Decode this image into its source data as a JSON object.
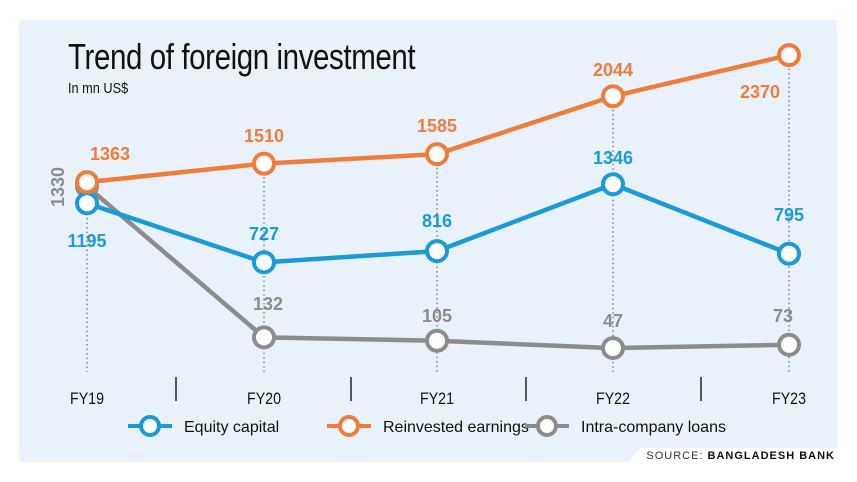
{
  "chart_data": {
    "type": "line",
    "title": "Trend of foreign investment",
    "subtitle": "In mn US$",
    "categories": [
      "FY19",
      "FY20",
      "FY21",
      "FY22",
      "FY23"
    ],
    "series": [
      {
        "name": "Equity capital",
        "color": "#1a9ad6",
        "values": [
          1195,
          727,
          816,
          1346,
          795
        ]
      },
      {
        "name": "Reinvested earnings",
        "color": "#ee7d3b",
        "values": [
          1363,
          1510,
          1585,
          2044,
          2370
        ]
      },
      {
        "name": "Intra-company loans",
        "color": "#8c8c8c",
        "values": [
          1330,
          132,
          105,
          47,
          73
        ]
      }
    ],
    "ylim": [
      0,
      2370
    ],
    "grid": false,
    "legend": "bottom",
    "source_label": "SOURCE:",
    "source": "BANGLADESH BANK",
    "background": "#e9f2fb"
  }
}
